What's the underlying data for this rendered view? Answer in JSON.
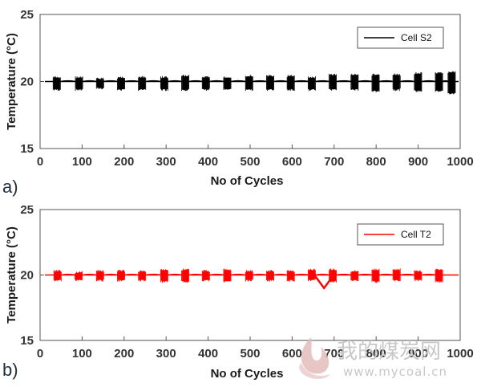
{
  "chart_data": [
    {
      "type": "line",
      "panel_label": "a)",
      "xlabel": "No of Cycles",
      "ylabel": "Temperature (°C)",
      "xlim": [
        0,
        1000
      ],
      "ylim": [
        15,
        25
      ],
      "xticks": [
        0,
        100,
        200,
        300,
        400,
        500,
        600,
        700,
        800,
        900,
        1000
      ],
      "yticks": [
        15,
        20,
        25
      ],
      "legend_position": "top-right",
      "series": [
        {
          "name": "Cell S2",
          "color": "#000000",
          "baseline": 20.0,
          "burst_center_cycles": [
            40,
            93,
            143,
            193,
            243,
            296,
            346,
            395,
            446,
            498,
            548,
            597,
            647,
            697,
            749,
            799,
            849,
            900,
            950,
            980
          ],
          "burst_min": [
            19.3,
            19.3,
            19.4,
            19.3,
            19.3,
            19.3,
            19.3,
            19.3,
            19.3,
            19.3,
            19.3,
            19.3,
            19.3,
            19.3,
            19.3,
            19.2,
            19.3,
            19.2,
            19.2,
            19.0
          ],
          "burst_max": [
            20.4,
            20.4,
            20.3,
            20.4,
            20.4,
            20.4,
            20.5,
            20.4,
            20.4,
            20.5,
            20.5,
            20.5,
            20.4,
            20.6,
            20.6,
            20.6,
            20.6,
            20.7,
            20.7,
            20.8
          ]
        }
      ]
    },
    {
      "type": "line",
      "panel_label": "b)",
      "xlabel": "No of Cycles",
      "ylabel": "Temperature (°C)",
      "xlim": [
        0,
        1000
      ],
      "ylim": [
        15,
        25
      ],
      "xticks": [
        0,
        100,
        200,
        300,
        400,
        500,
        600,
        700,
        800,
        900,
        1000
      ],
      "yticks": [
        15,
        20,
        25
      ],
      "legend_position": "top-right",
      "series": [
        {
          "name": "Cell T2",
          "color": "#ff0000",
          "baseline": 20.0,
          "burst_center_cycles": [
            42,
            92,
            143,
            193,
            243,
            296,
            346,
            395,
            446,
            498,
            548,
            597,
            647,
            697,
            749,
            799,
            849,
            900,
            950
          ],
          "burst_min": [
            19.5,
            19.5,
            19.5,
            19.5,
            19.5,
            19.4,
            19.4,
            19.5,
            19.4,
            19.5,
            19.5,
            19.5,
            19.5,
            19.4,
            19.5,
            19.4,
            19.5,
            19.5,
            19.4
          ],
          "burst_max": [
            20.4,
            20.3,
            20.4,
            20.4,
            20.4,
            20.5,
            20.5,
            20.4,
            20.5,
            20.4,
            20.4,
            20.4,
            20.5,
            20.5,
            20.4,
            20.5,
            20.5,
            20.4,
            20.5
          ],
          "dip": {
            "cycle": 676,
            "value": 19.0
          }
        }
      ]
    }
  ],
  "watermark": {
    "text": "我的煤炭网",
    "url": "www.mycoal.cn"
  }
}
